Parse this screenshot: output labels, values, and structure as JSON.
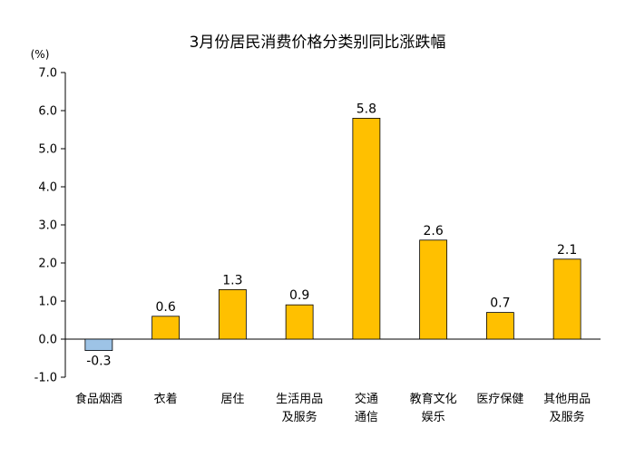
{
  "chart_data": {
    "type": "bar",
    "title": "3月份居民消费价格分类别同比涨跌幅",
    "unit_label": "(%)",
    "categories": [
      [
        "食品烟酒"
      ],
      [
        "衣着"
      ],
      [
        "居住"
      ],
      [
        "生活用品",
        "及服务"
      ],
      [
        "交通",
        "通信"
      ],
      [
        "教育文化",
        "娱乐"
      ],
      [
        "医疗保健"
      ],
      [
        "其他用品",
        "及服务"
      ]
    ],
    "values": [
      -0.3,
      0.6,
      1.3,
      0.9,
      5.8,
      2.6,
      0.7,
      2.1
    ],
    "value_labels": [
      "-0.3",
      "0.6",
      "1.3",
      "0.9",
      "5.8",
      "2.6",
      "0.7",
      "2.1"
    ],
    "ylim": [
      -1.0,
      7.0
    ],
    "yticks": [
      -1.0,
      0.0,
      1.0,
      2.0,
      3.0,
      4.0,
      5.0,
      6.0,
      7.0
    ],
    "ytick_labels": [
      "-1.0",
      "0.0",
      "1.0",
      "2.0",
      "3.0",
      "4.0",
      "5.0",
      "6.0",
      "7.0"
    ],
    "grid": false,
    "colors": {
      "positive_fill": "#FFC000",
      "positive_stroke": "#000000",
      "negative_fill": "#9DC3E6",
      "negative_stroke": "#000000",
      "axis": "#000000"
    }
  }
}
